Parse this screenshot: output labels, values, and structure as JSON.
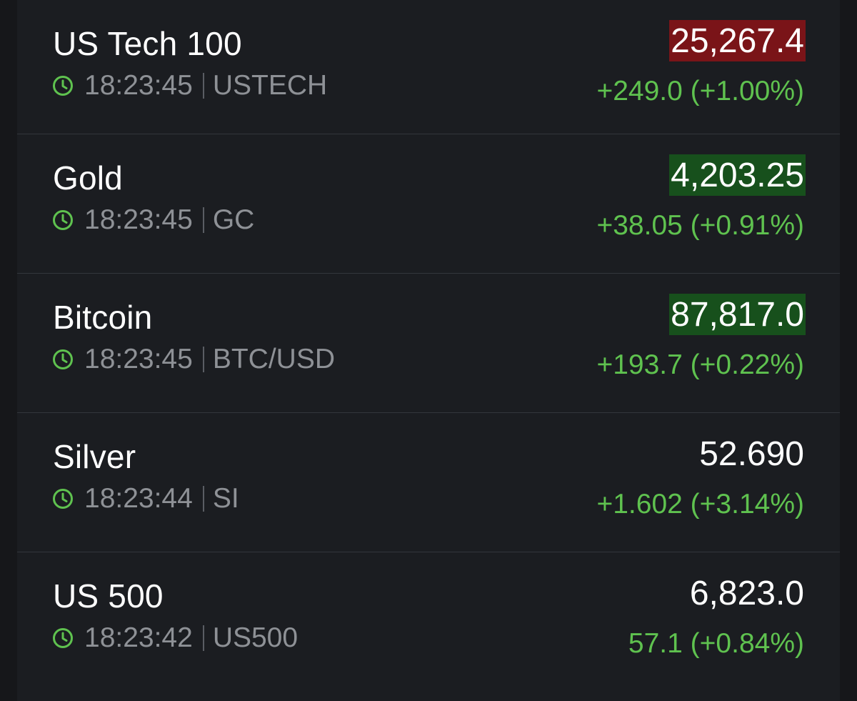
{
  "quotes": [
    {
      "name": "US Tech 100",
      "time": "18:23:45",
      "symbol": "USTECH",
      "price": "25,267.4",
      "flash": "down",
      "change": "+249.0 (+1.00%)"
    },
    {
      "name": "Gold",
      "time": "18:23:45",
      "symbol": "GC",
      "price": "4,203.25",
      "flash": "up",
      "change": "+38.05 (+0.91%)"
    },
    {
      "name": "Bitcoin",
      "time": "18:23:45",
      "symbol": "BTC/USD",
      "price": "87,817.0",
      "flash": "up",
      "change": "+193.7 (+0.22%)"
    },
    {
      "name": "Silver",
      "time": "18:23:44",
      "symbol": "SI",
      "price": "52.690",
      "flash": "none",
      "change": "+1.602 (+3.14%)"
    },
    {
      "name": "US 500",
      "time": "18:23:42",
      "symbol": "US500",
      "price": "6,823.0",
      "flash": "none",
      "change": "57.1 (+0.84%)"
    }
  ],
  "icons": {
    "time": "clock-icon"
  },
  "colors": {
    "background": "#1b1d21",
    "positive_change": "#5fc24f",
    "flash_down": "#7a1418",
    "flash_up": "#17501c",
    "clock_icon": "#5fc24f"
  }
}
